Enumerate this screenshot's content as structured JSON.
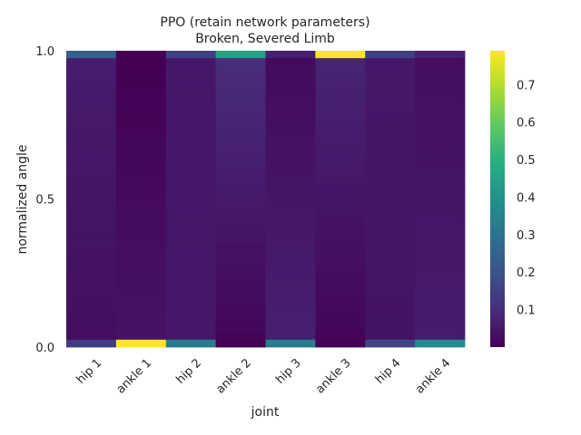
{
  "chart_data": {
    "type": "heatmap",
    "title": [
      "PPO (retain network parameters)",
      "Broken, Severed Limb"
    ],
    "xlabel": "joint",
    "ylabel": "normalized angle",
    "categories": [
      "hip 1",
      "ankle 1",
      "hip 2",
      "ankle 2",
      "hip 3",
      "ankle 3",
      "hip 4",
      "ankle 4"
    ],
    "yticks": [
      "0.0",
      "0.5",
      "1.0"
    ],
    "ylim": [
      0,
      1
    ],
    "n_bins": 40,
    "colormap": "viridis",
    "colorbar_range": [
      0,
      0.79
    ],
    "colorbar_ticks": [
      "0.1",
      "0.2",
      "0.3",
      "0.4",
      "0.5",
      "0.6",
      "0.7"
    ],
    "colorbar_tick_values": [
      0.1,
      0.2,
      0.3,
      0.4,
      0.5,
      0.6,
      0.7
    ],
    "series": [
      {
        "top": 0.24,
        "body_top": 0.06,
        "body_bottom": 0.03,
        "bottom": 0.14
      },
      {
        "top": 0.0,
        "body_top": 0.0,
        "body_bottom": 0.04,
        "bottom": 0.79
      },
      {
        "top": 0.15,
        "body_top": 0.05,
        "body_bottom": 0.05,
        "bottom": 0.33
      },
      {
        "top": 0.45,
        "body_top": 0.1,
        "body_bottom": 0.01,
        "bottom": 0.0
      },
      {
        "top": 0.07,
        "body_top": 0.02,
        "body_bottom": 0.07,
        "bottom": 0.33
      },
      {
        "top": 0.79,
        "body_top": 0.08,
        "body_bottom": 0.01,
        "bottom": 0.0
      },
      {
        "top": 0.15,
        "body_top": 0.05,
        "body_bottom": 0.04,
        "bottom": 0.16
      },
      {
        "top": 0.07,
        "body_top": 0.03,
        "body_bottom": 0.06,
        "bottom": 0.38
      }
    ]
  }
}
